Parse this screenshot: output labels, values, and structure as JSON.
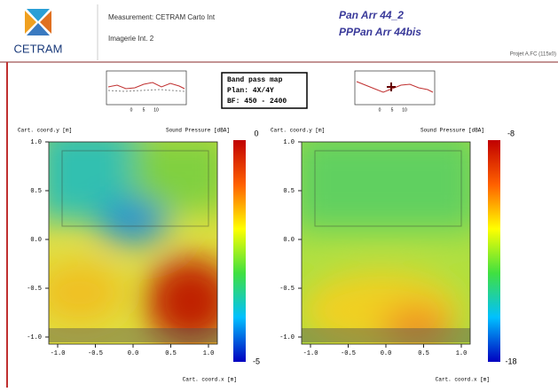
{
  "header": {
    "logo": "CETRAM",
    "measurement": "Measurement: CETRAM Carto Int",
    "image": "Imagerie Int. 2",
    "title1": "Pan Arr 44_2",
    "title2": "PPPan Arr 44bis",
    "project": "Projet A.FC (115x0)"
  },
  "info_box": {
    "line1": "Band pass map",
    "line2": "Plan: 4X/4Y",
    "line3": "BF: 450 - 2400"
  },
  "mini_plots": [
    {
      "xticks": [
        "0",
        "5",
        "10"
      ]
    },
    {
      "xticks": [
        "0",
        "5",
        "10"
      ]
    }
  ],
  "maps": [
    {
      "ylabel": "Cart. coord.y [m]",
      "legend": "Sound Pressure [dBA]",
      "cb_top": "0",
      "cb_bottom": "-5",
      "yticks": [
        "1.0",
        "0.5",
        "0.0",
        "-0.5",
        "-1.0"
      ],
      "xticks": [
        "-1.0",
        "-0.5",
        "0.0",
        "0.5",
        "1.0"
      ],
      "xlabel": "Cart. coord.x [m]"
    },
    {
      "ylabel": "Cart. coord.y [m]",
      "legend": "Sound Pressure [dBA]",
      "cb_top": "-8",
      "cb_bottom": "-18",
      "yticks": [
        "1.0",
        "0.5",
        "0.0",
        "-0.5",
        "-1.0"
      ],
      "xticks": [
        "-1.0",
        "-0.5",
        "0.0",
        "0.5",
        "1.0"
      ],
      "xlabel": "Cart. coord.x [m]"
    }
  ]
}
